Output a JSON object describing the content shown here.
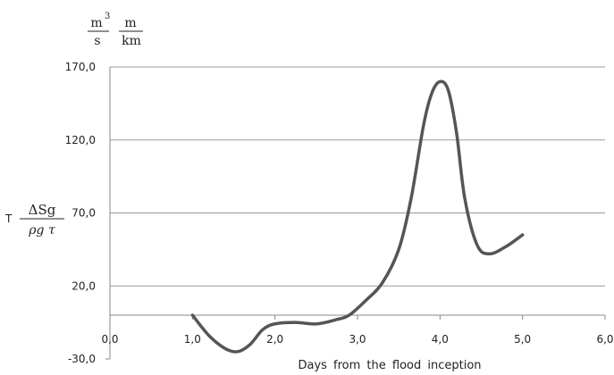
{
  "chart_data": {
    "type": "line",
    "xlabel": "Days from the flood inception",
    "ylabel": {
      "prefix": "T",
      "numerator": "ΔSg",
      "denominator": "ρg τ"
    },
    "units": {
      "first": {
        "numerator": "m",
        "superscript": "3",
        "denominator": "s"
      },
      "second": {
        "numerator": "m",
        "denominator": "km"
      }
    },
    "xlim": [
      0,
      6
    ],
    "ylim": [
      -30,
      170
    ],
    "x_ticks": [
      "0,0",
      "1,0",
      "2,0",
      "3,0",
      "4,0",
      "5,0",
      "6,0"
    ],
    "y_ticks": [
      "-30,0",
      "20,0",
      "70,0",
      "120,0",
      "170,0"
    ],
    "grid": "horizontal",
    "line_color": "#555555",
    "series": [
      {
        "x": [
          1.0,
          1.2,
          1.4,
          1.55,
          1.7,
          1.85,
          2.0,
          2.25,
          2.5,
          2.75,
          2.9,
          3.1,
          3.3,
          3.5,
          3.65,
          3.8,
          3.9,
          4.0,
          4.1,
          4.2,
          4.3,
          4.45,
          4.6,
          4.8,
          5.0
        ],
        "y": [
          0,
          -14,
          -23,
          -25,
          -20,
          -10,
          -6,
          -5,
          -6,
          -3,
          0,
          10,
          22,
          45,
          80,
          130,
          152,
          160,
          154,
          125,
          80,
          48,
          42,
          47,
          55
        ]
      }
    ]
  }
}
